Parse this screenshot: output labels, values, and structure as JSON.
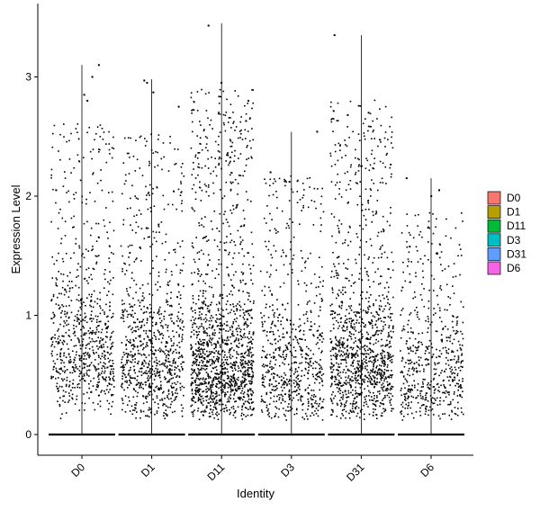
{
  "chart_data": {
    "type": "scatter",
    "subtype": "jittered violin plot",
    "title": "",
    "xlabel": "Identity",
    "ylabel": "Expression Level",
    "categories": [
      "D0",
      "D1",
      "D11",
      "D3",
      "D31",
      "D6"
    ],
    "ylim": [
      -0.2,
      3.5
    ],
    "yticks": [
      0,
      1,
      2,
      3
    ],
    "xtick_rotation": -45,
    "grid": false,
    "legend": {
      "placement": "right",
      "entries": [
        {
          "label": "D0",
          "color": "#F8766D"
        },
        {
          "label": "D1",
          "color": "#B79F00"
        },
        {
          "label": "D11",
          "color": "#00BA38"
        },
        {
          "label": "D3",
          "color": "#00BFC4"
        },
        {
          "label": "D31",
          "color": "#619CFF"
        },
        {
          "label": "D6",
          "color": "#F564E3"
        }
      ]
    },
    "point_color": "#000000",
    "violin_max": [
      3.1,
      2.98,
      3.45,
      2.54,
      3.35,
      2.15
    ],
    "points_above_zero_approx": [
      750,
      850,
      1400,
      650,
      1150,
      550
    ],
    "distribution_mode": [
      0.6,
      0.5,
      0.45,
      0.4,
      0.5,
      0.4
    ],
    "series": [
      {
        "name": "D0",
        "notable_points": [
          [
            0,
            3.1
          ],
          [
            0,
            3.0
          ],
          [
            0,
            2.85
          ],
          [
            0,
            2.8
          ],
          [
            0,
            2.05
          ]
        ]
      },
      {
        "name": "D1",
        "notable_points": [
          [
            1,
            2.97
          ],
          [
            1,
            2.95
          ],
          [
            1,
            2.87
          ],
          [
            1,
            2.75
          ]
        ]
      },
      {
        "name": "D11",
        "notable_points": [
          [
            2,
            3.43
          ],
          [
            2,
            2.95
          ],
          [
            2,
            2.8
          ],
          [
            2,
            2.63
          ]
        ]
      },
      {
        "name": "D3",
        "notable_points": [
          [
            3,
            2.54
          ],
          [
            3,
            2.2
          ],
          [
            3,
            2.12
          ]
        ]
      },
      {
        "name": "D31",
        "notable_points": [
          [
            4,
            3.35
          ],
          [
            4,
            2.7
          ],
          [
            4,
            2.68
          ]
        ]
      },
      {
        "name": "D6",
        "notable_points": [
          [
            5,
            2.15
          ],
          [
            5,
            2.05
          ],
          [
            5,
            2.0
          ]
        ]
      }
    ]
  }
}
